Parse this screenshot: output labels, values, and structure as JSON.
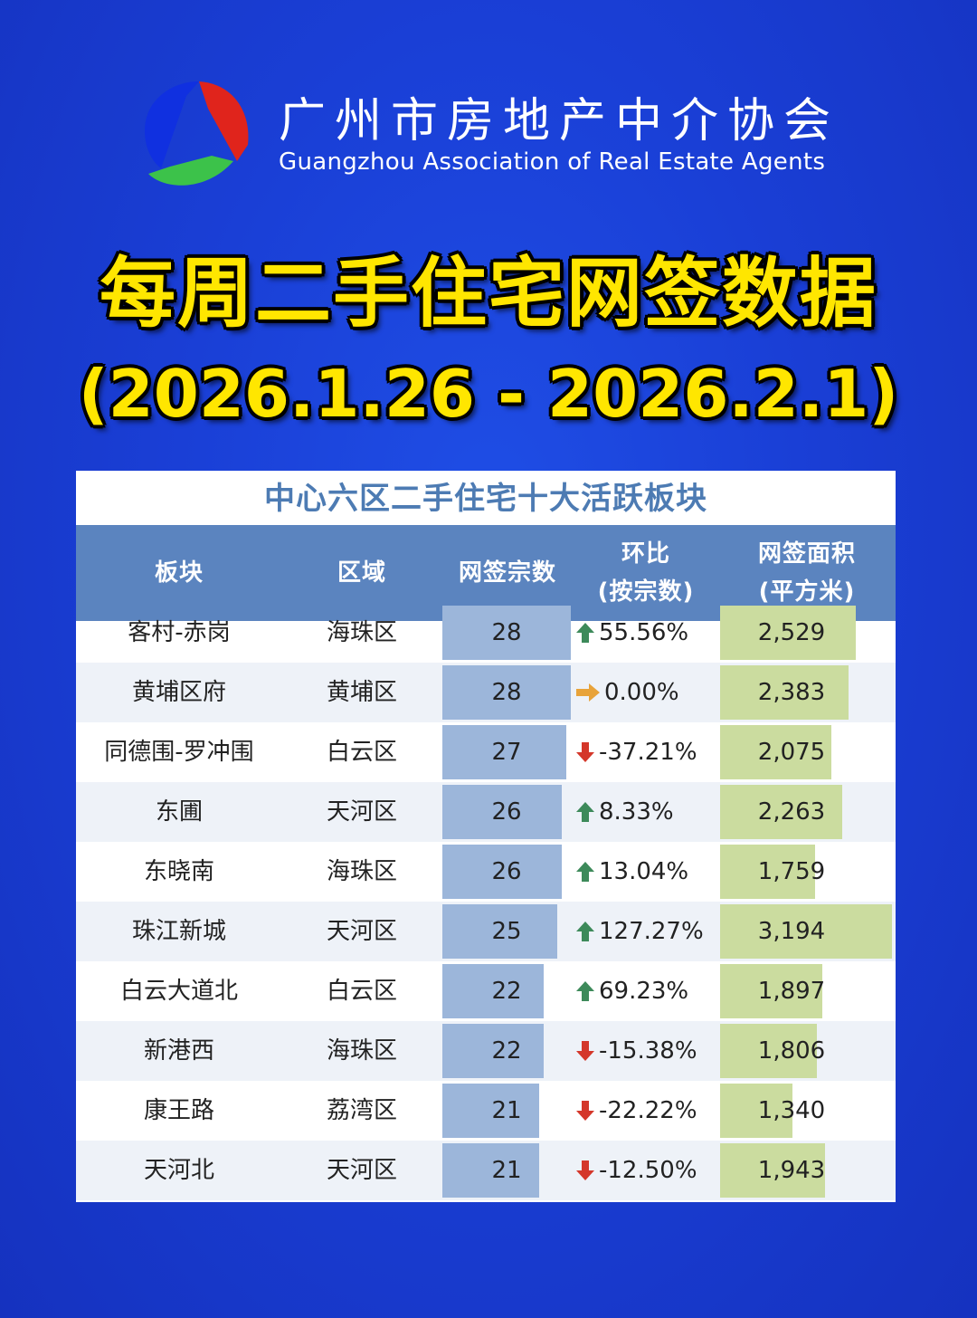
{
  "colors": {
    "background": "#1a3fd6",
    "headline": "#ffe600",
    "table_header": "#5b84bf",
    "table_title": "#4d7bb3",
    "deals_bar": "#9cb6da",
    "area_bar": "#cbdc9f",
    "up": "#3d8a5a",
    "down": "#d4372a",
    "flat": "#e8a33a"
  },
  "logo": {
    "name_cn": "广州市房地产中介协会",
    "name_en": "Guangzhou Association of Real Estate Agents"
  },
  "headline": {
    "title": "每周二手住宅网签数据",
    "period": "(2026.1.26 - 2026.2.1)"
  },
  "table": {
    "title": "中心六区二手住宅十大活跃板块",
    "headers": {
      "block": "板块",
      "district": "区域",
      "deals": "网签宗数",
      "change_1": "环比",
      "change_2": "(按宗数)",
      "area_1": "网签面积",
      "area_2": "(平方米)"
    },
    "deals_max": 28,
    "area_max": 3194,
    "rows": [
      {
        "block": "客村-赤岗",
        "district": "海珠区",
        "deals": "28",
        "deals_num": 28,
        "change": "55.56%",
        "trend": "up",
        "area": "2,529",
        "area_num": 2529
      },
      {
        "block": "黄埔区府",
        "district": "黄埔区",
        "deals": "28",
        "deals_num": 28,
        "change": "0.00%",
        "trend": "flat",
        "area": "2,383",
        "area_num": 2383
      },
      {
        "block": "同德围-罗冲围",
        "district": "白云区",
        "deals": "27",
        "deals_num": 27,
        "change": "-37.21%",
        "trend": "down",
        "area": "2,075",
        "area_num": 2075
      },
      {
        "block": "东圃",
        "district": "天河区",
        "deals": "26",
        "deals_num": 26,
        "change": "8.33%",
        "trend": "up",
        "area": "2,263",
        "area_num": 2263
      },
      {
        "block": "东晓南",
        "district": "海珠区",
        "deals": "26",
        "deals_num": 26,
        "change": "13.04%",
        "trend": "up",
        "area": "1,759",
        "area_num": 1759
      },
      {
        "block": "珠江新城",
        "district": "天河区",
        "deals": "25",
        "deals_num": 25,
        "change": "127.27%",
        "trend": "up",
        "area": "3,194",
        "area_num": 3194
      },
      {
        "block": "白云大道北",
        "district": "白云区",
        "deals": "22",
        "deals_num": 22,
        "change": "69.23%",
        "trend": "up",
        "area": "1,897",
        "area_num": 1897
      },
      {
        "block": "新港西",
        "district": "海珠区",
        "deals": "22",
        "deals_num": 22,
        "change": "-15.38%",
        "trend": "down",
        "area": "1,806",
        "area_num": 1806
      },
      {
        "block": "康王路",
        "district": "荔湾区",
        "deals": "21",
        "deals_num": 21,
        "change": "-22.22%",
        "trend": "down",
        "area": "1,340",
        "area_num": 1340
      },
      {
        "block": "天河北",
        "district": "天河区",
        "deals": "21",
        "deals_num": 21,
        "change": "-12.50%",
        "trend": "down",
        "area": "1,943",
        "area_num": 1943
      }
    ]
  }
}
